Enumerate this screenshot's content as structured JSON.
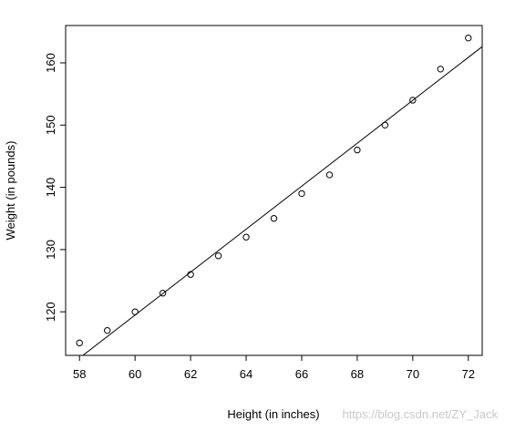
{
  "chart_data": {
    "type": "scatter",
    "title": "",
    "xlabel": "Height (in inches)",
    "ylabel": "Weight (in pounds)",
    "xlim": [
      57.5,
      72.5
    ],
    "ylim": [
      113,
      166
    ],
    "xticks": [
      58,
      60,
      62,
      64,
      66,
      68,
      70,
      72
    ],
    "yticks": [
      120,
      130,
      140,
      150,
      160
    ],
    "grid": false,
    "legend": "none",
    "point_marker": "open-circle",
    "points": {
      "x": [
        58,
        59,
        60,
        61,
        62,
        63,
        64,
        65,
        66,
        67,
        68,
        69,
        70,
        71,
        72
      ],
      "y": [
        115,
        117,
        120,
        123,
        126,
        129,
        132,
        135,
        139,
        142,
        146,
        150,
        154,
        159,
        164
      ]
    },
    "fit_line": {
      "type": "linear",
      "intercept": -87.52,
      "slope": 3.45
    }
  },
  "watermark": "https://blog.csdn.net/ZY_Jack",
  "colors": {
    "points": "#000000",
    "line": "#000000",
    "axes": "#000000",
    "watermark": "#c8c8c8"
  }
}
